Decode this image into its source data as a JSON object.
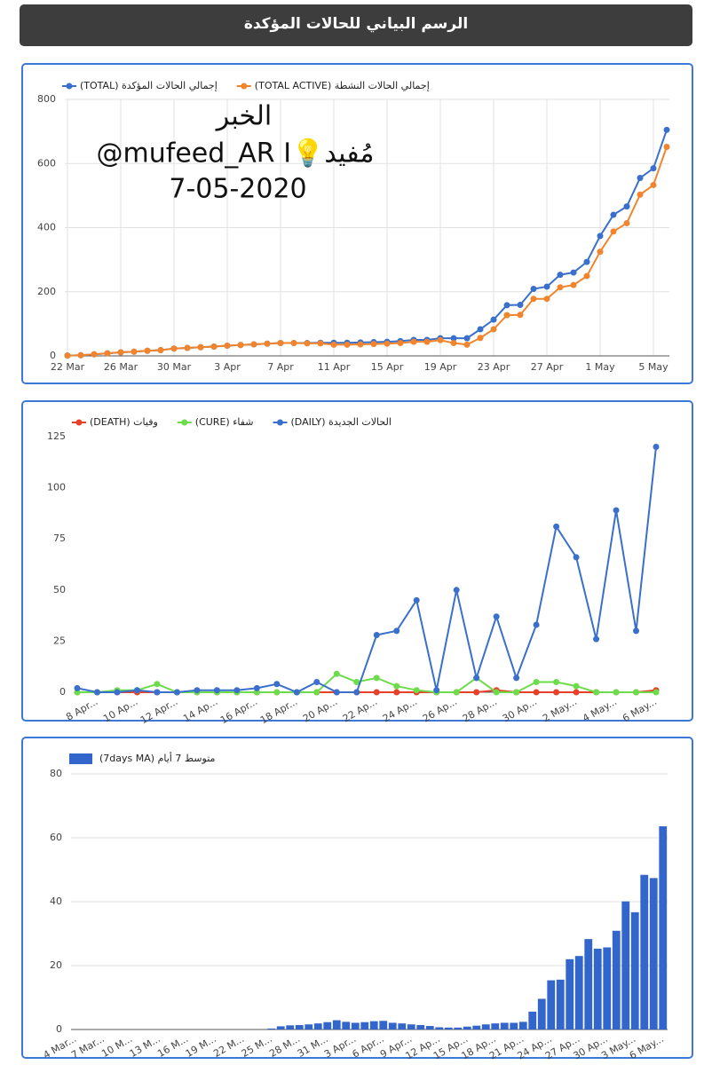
{
  "header": {
    "title": "الرسم البياني للحالات المؤكدة"
  },
  "chart_data": [
    {
      "type": "line",
      "annotations": [
        "الخبر",
        "@mufeed_AR I💡مُفيد",
        "7-05-2020"
      ],
      "categories": [
        "22 Mar",
        null,
        null,
        null,
        "26 Mar",
        null,
        null,
        null,
        "30 Mar",
        null,
        null,
        null,
        "3 Apr",
        null,
        null,
        null,
        "7 Apr",
        null,
        null,
        null,
        "11 Apr",
        null,
        null,
        null,
        "15 Apr",
        null,
        null,
        null,
        "19 Apr",
        null,
        null,
        null,
        "23 Apr",
        null,
        null,
        null,
        "27 Apr",
        null,
        null,
        null,
        "1 May",
        null,
        null,
        null,
        "5 May",
        null
      ],
      "series": [
        {
          "name": "إجمالي الحالات المؤكدة (TOTAL)",
          "color": "#3a6fcb",
          "values": [
            1,
            2,
            5,
            8,
            11,
            13,
            16,
            18,
            23,
            25,
            27,
            29,
            32,
            34,
            36,
            38,
            40,
            40,
            40,
            41,
            41,
            41,
            42,
            43,
            44,
            46,
            50,
            50,
            55,
            55,
            55,
            83,
            113,
            158,
            159,
            209,
            216,
            253,
            260,
            293,
            374,
            440,
            466,
            555,
            585,
            705
          ]
        },
        {
          "name": "إجمالي الحالات النشطة (TOTAL ACTIVE)",
          "color": "#f0852d",
          "values": [
            1,
            2,
            5,
            8,
            11,
            13,
            16,
            18,
            23,
            25,
            27,
            29,
            32,
            34,
            36,
            38,
            40,
            40,
            39,
            39,
            35,
            35,
            36,
            37,
            38,
            40,
            44,
            44,
            49,
            40,
            35,
            56,
            83,
            127,
            128,
            178,
            178,
            214,
            221,
            249,
            325,
            388,
            414,
            503,
            533,
            652
          ]
        }
      ],
      "ylim": [
        0,
        800
      ],
      "yticks": [
        0,
        200,
        400,
        600,
        800
      ],
      "grid": true,
      "xgrid": true,
      "legend": "top-left"
    },
    {
      "type": "line",
      "categories": [
        null,
        "8 Apr...",
        null,
        "10 Ap...",
        null,
        "12 Apr...",
        null,
        "14 Ap...",
        null,
        "16 Apr...",
        null,
        "18 Apr...",
        null,
        "20 Ap...",
        null,
        "22 Ap...",
        null,
        "24 Ap...",
        null,
        "26 Ap...",
        null,
        "28 Ap...",
        null,
        "30 Ap...",
        null,
        "2 May...",
        null,
        "4 May...",
        null,
        "6 May..."
      ],
      "series": [
        {
          "name": "وفيات (DEATH)",
          "color": "#e8412a",
          "values": [
            0,
            0,
            0,
            0,
            0,
            0,
            0,
            0,
            0,
            0,
            0,
            0,
            0,
            0,
            0,
            0,
            0,
            0,
            0,
            0,
            0,
            1,
            0,
            0,
            0,
            0,
            0,
            0,
            0,
            1
          ]
        },
        {
          "name": "شفاء (CURE)",
          "color": "#6ddc4b",
          "values": [
            0,
            0,
            1,
            1,
            4,
            0,
            0,
            0,
            0,
            0,
            0,
            0,
            0,
            9,
            5,
            7,
            3,
            1,
            0,
            0,
            7,
            0,
            0,
            5,
            5,
            3,
            0,
            0,
            0,
            0
          ]
        },
        {
          "name": "الحالات الجديدة (DAILY)",
          "color": "#3a6fcb",
          "values": [
            2,
            0,
            0,
            1,
            0,
            0,
            1,
            1,
            1,
            2,
            4,
            0,
            5,
            0,
            0,
            28,
            30,
            45,
            1,
            50,
            7,
            37,
            7,
            33,
            81,
            66,
            26,
            89,
            30,
            120
          ]
        }
      ],
      "ylim": [
        0,
        125
      ],
      "yticks": [
        0,
        25,
        50,
        75,
        100,
        125
      ],
      "grid": false,
      "xgrid": false,
      "legend": "top-left"
    },
    {
      "type": "bar",
      "categories": [
        "4 Mar...",
        null,
        null,
        "7 Mar...",
        null,
        null,
        "10 M...",
        null,
        null,
        "13 M...",
        null,
        null,
        "16 M...",
        null,
        null,
        "19 M...",
        null,
        null,
        "22 M...",
        null,
        null,
        "25 M...",
        null,
        null,
        "28 M...",
        null,
        null,
        "31 M...",
        null,
        null,
        "3 Apr...",
        null,
        null,
        "6 Apr...",
        null,
        null,
        "9 Apr...",
        null,
        null,
        "12 Ap...",
        null,
        null,
        "15 Ap...",
        null,
        null,
        "18 Ap...",
        null,
        null,
        "21 Ap...",
        null,
        null,
        "24 Ap...",
        null,
        null,
        "27 Ap...",
        null,
        null,
        "30 Ap...",
        null,
        null,
        "3 May...",
        null,
        null,
        "6 May..."
      ],
      "series": [
        {
          "name": "متوسط 7 أيام (7days MA)",
          "color": "#3366cc",
          "values": [
            0,
            0,
            0,
            0,
            0,
            0,
            0,
            0,
            0,
            0,
            0,
            0,
            0,
            0,
            0,
            0,
            0,
            0,
            0,
            0,
            0,
            0.3,
            1.0,
            1.3,
            1.4,
            1.6,
            1.9,
            2.3,
            2.9,
            2.4,
            2.1,
            2.3,
            2.6,
            2.7,
            2.1,
            1.9,
            1.6,
            1.4,
            1.1,
            0.7,
            0.6,
            0.6,
            0.9,
            1.2,
            1.6,
            1.9,
            2.1,
            2.1,
            2.4,
            5.6,
            9.6,
            15.4,
            15.6,
            22.0,
            23.0,
            28.3,
            25.3,
            25.7,
            30.9,
            40.1,
            36.7,
            48.4,
            47.4,
            63.6
          ]
        }
      ],
      "ylim": [
        0,
        80
      ],
      "yticks": [
        0,
        20,
        40,
        60,
        80
      ],
      "grid": true,
      "xgrid": false,
      "legend": "top-left"
    }
  ]
}
